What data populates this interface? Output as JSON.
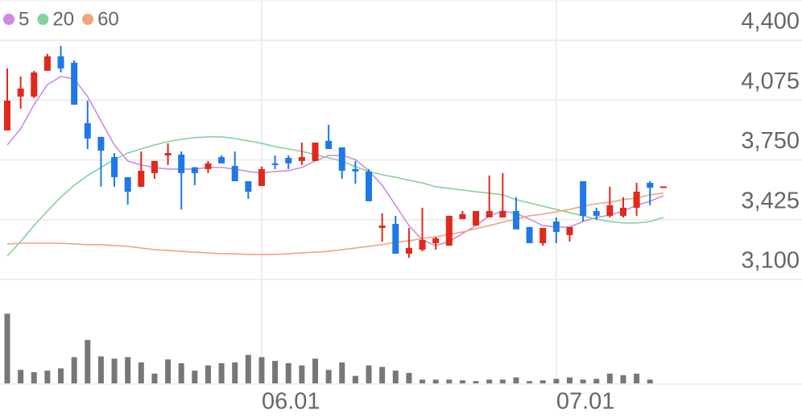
{
  "chart_data": {
    "type": "candlestick",
    "categories": [
      null,
      null,
      null,
      null,
      null,
      null,
      null,
      null,
      null,
      null,
      null,
      null,
      null,
      null,
      null,
      null,
      null,
      null,
      null,
      "06.01",
      null,
      null,
      null,
      null,
      null,
      null,
      null,
      null,
      null,
      null,
      null,
      null,
      null,
      null,
      null,
      null,
      null,
      null,
      null,
      null,
      null,
      "07.01",
      null,
      null,
      null,
      null,
      null,
      null,
      null,
      null
    ],
    "open": [
      3910,
      4094,
      4094,
      4234,
      4313,
      4278,
      3949,
      3875,
      3765,
      3656,
      3604,
      3678,
      3774,
      3779,
      3710,
      3700,
      3765,
      3717,
      3634,
      3608,
      3731,
      3761,
      3744,
      3744,
      3853,
      3818,
      3700,
      3687,
      3380,
      3402,
      3240,
      3262,
      3297,
      3284,
      3428,
      3393,
      3437,
      3437,
      3472,
      3385,
      3297,
      3415,
      3341,
      3634,
      3472,
      3446,
      3446,
      3490,
      3625,
      3603
    ],
    "high": [
      4247,
      4203,
      4234,
      4326,
      4370,
      4291,
      4072,
      3875,
      3787,
      3656,
      3796,
      3744,
      3840,
      3796,
      3710,
      3744,
      3774,
      3796,
      3634,
      3713,
      3774,
      3774,
      3844,
      3844,
      3941,
      3818,
      3744,
      3700,
      3459,
      3446,
      3380,
      3490,
      3332,
      3446,
      3472,
      3472,
      3665,
      3678,
      3547,
      3385,
      3380,
      3437,
      3385,
      3634,
      3490,
      3604,
      3547,
      3625,
      3634,
      3606
    ],
    "low": [
      3910,
      4028,
      4085,
      4234,
      4225,
      4050,
      3809,
      3604,
      3604,
      3507,
      3604,
      3647,
      3722,
      3481,
      3612,
      3678,
      3731,
      3634,
      3538,
      3608,
      3700,
      3700,
      3722,
      3744,
      3809,
      3647,
      3621,
      3525,
      3306,
      3240,
      3218,
      3253,
      3262,
      3284,
      3428,
      3393,
      3437,
      3437,
      3372,
      3297,
      3284,
      3297,
      3306,
      3415,
      3424,
      3437,
      3437,
      3446,
      3503,
      3603
    ],
    "close": [
      4072,
      4138,
      4225,
      4313,
      4247,
      4050,
      3866,
      3800,
      3656,
      3577,
      3691,
      3744,
      3787,
      3678,
      3678,
      3731,
      3731,
      3634,
      3577,
      3700,
      3722,
      3731,
      3765,
      3844,
      3809,
      3691,
      3687,
      3525,
      3393,
      3240,
      3271,
      3315,
      3324,
      3446,
      3455,
      3472,
      3472,
      3472,
      3372,
      3297,
      3380,
      3358,
      3385,
      3446,
      3446,
      3503,
      3490,
      3577,
      3599,
      3606
    ],
    "up_color": "#e0281b",
    "down_color": "#1f78e8",
    "lines": [
      {
        "name": "5",
        "color": "#cf8ae3",
        "values": [
          3831,
          3919,
          4050,
          4159,
          4203,
          4190,
          4094,
          3962,
          3831,
          3744,
          3722,
          3709,
          3700,
          3700,
          3700,
          3709,
          3709,
          3700,
          3687,
          3678,
          3687,
          3691,
          3709,
          3744,
          3774,
          3774,
          3752,
          3691,
          3612,
          3503,
          3393,
          3315,
          3284,
          3306,
          3350,
          3393,
          3446,
          3472,
          3459,
          3428,
          3393,
          3385,
          3385,
          3415,
          3437,
          3450,
          3472,
          3503,
          3525,
          3555
        ]
      },
      {
        "name": "20",
        "color": "#82d39c",
        "values": [
          3227,
          3306,
          3393,
          3472,
          3547,
          3612,
          3665,
          3709,
          3752,
          3787,
          3809,
          3831,
          3849,
          3862,
          3871,
          3875,
          3875,
          3866,
          3853,
          3840,
          3822,
          3809,
          3796,
          3779,
          3761,
          3744,
          3713,
          3687,
          3669,
          3656,
          3639,
          3625,
          3604,
          3595,
          3586,
          3577,
          3569,
          3560,
          3534,
          3516,
          3498,
          3481,
          3463,
          3446,
          3428,
          3415,
          3407,
          3407,
          3415,
          3437
        ]
      },
      {
        "name": "60",
        "color": "#f2a47e",
        "values": [
          3293,
          3297,
          3297,
          3297,
          3297,
          3293,
          3289,
          3289,
          3284,
          3280,
          3271,
          3262,
          3258,
          3253,
          3248,
          3245,
          3240,
          3240,
          3236,
          3236,
          3236,
          3240,
          3245,
          3248,
          3253,
          3262,
          3271,
          3280,
          3289,
          3302,
          3310,
          3323,
          3332,
          3345,
          3358,
          3376,
          3393,
          3411,
          3428,
          3446,
          3455,
          3468,
          3481,
          3498,
          3512,
          3520,
          3534,
          3542,
          3560,
          3569
        ]
      }
    ],
    "volume": {
      "color": "#777777",
      "ylim": [
        0,
        100
      ],
      "values": [
        93,
        18,
        15,
        17,
        20,
        35,
        58,
        36,
        33,
        35,
        28,
        13,
        32,
        27,
        17,
        24,
        27,
        28,
        38,
        35,
        30,
        27,
        24,
        33,
        18,
        28,
        10,
        24,
        22,
        17,
        14,
        5,
        5,
        5,
        4,
        3,
        5,
        5,
        8,
        3,
        4,
        6,
        8,
        5,
        6,
        13,
        11,
        13,
        5,
        0
      ]
    },
    "ylim": [
      3100,
      4400
    ],
    "yticks": [
      {
        "value": 3100,
        "label": "3,100"
      },
      {
        "value": 3425,
        "label": "3,425"
      },
      {
        "value": 3750,
        "label": "3,750"
      },
      {
        "value": 4075,
        "label": "4,075"
      },
      {
        "value": 4400,
        "label": "4,400"
      }
    ],
    "grid": true
  }
}
